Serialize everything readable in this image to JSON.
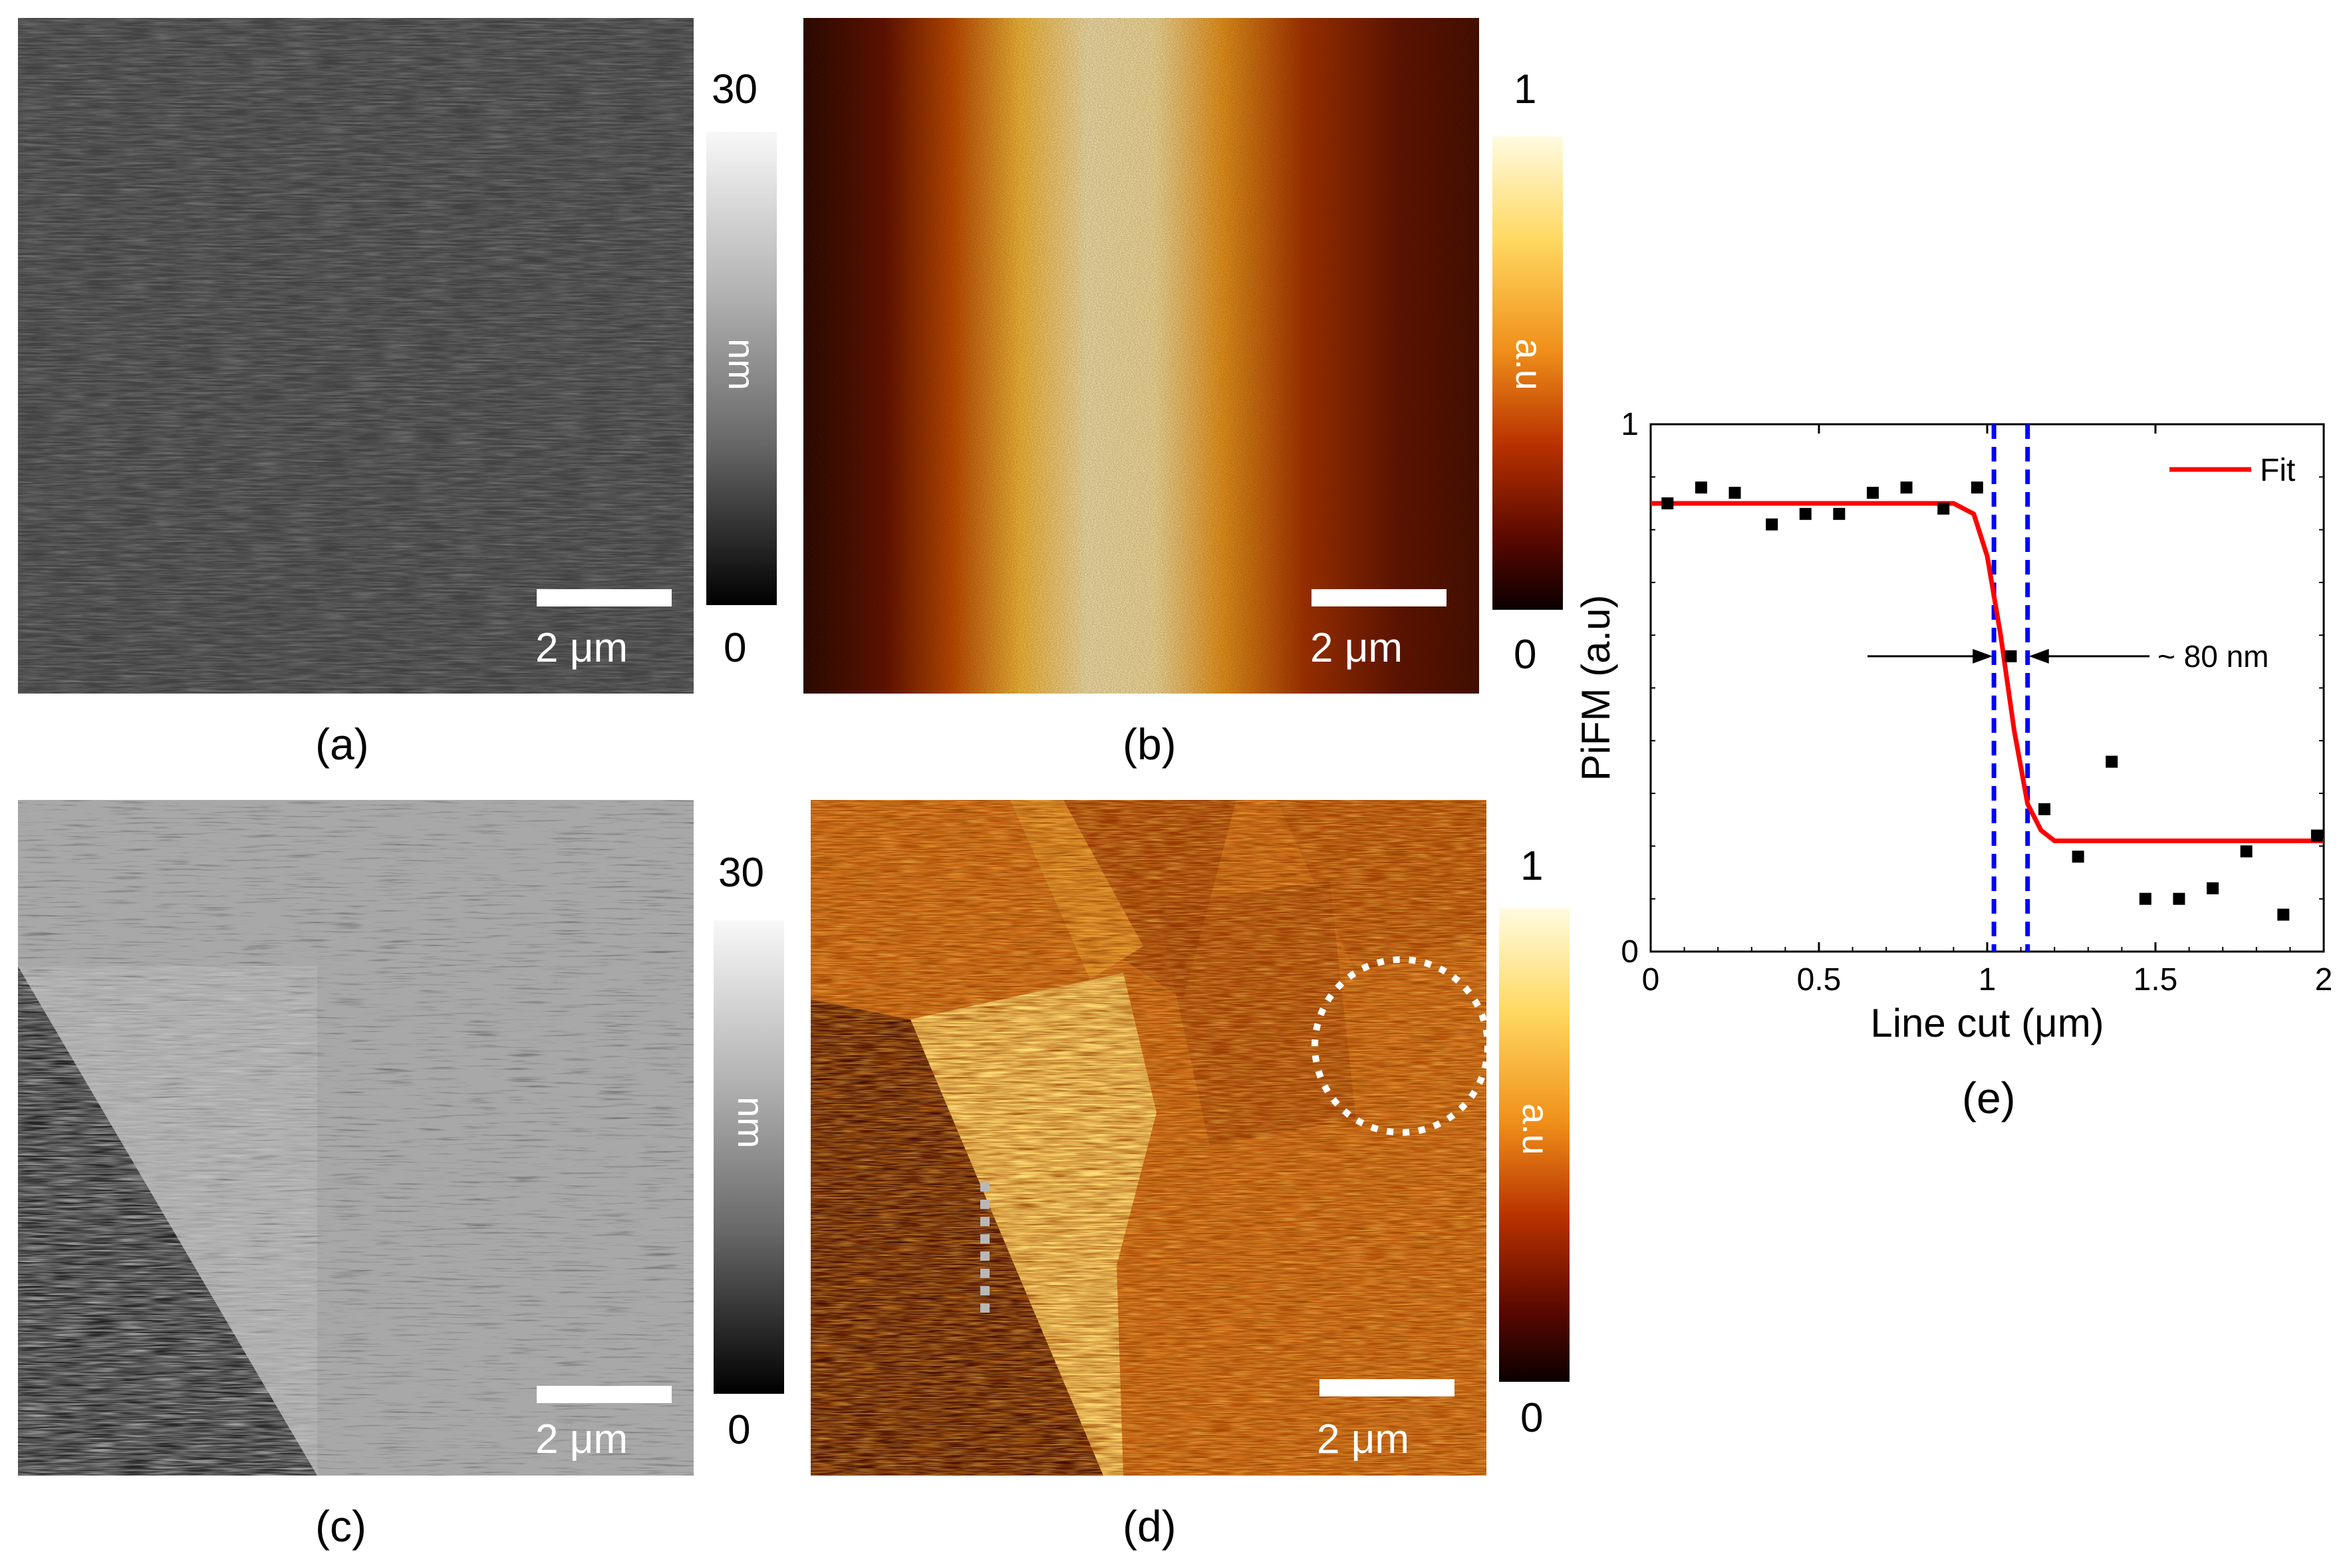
{
  "panels": {
    "a": {
      "label": "(a)",
      "scalebar": "2 μm",
      "colorbar": {
        "max": "30",
        "min": "0",
        "unit": "nm"
      }
    },
    "b": {
      "label": "(b)",
      "scalebar": "2 μm",
      "colorbar": {
        "max": "1",
        "min": "0",
        "unit": "a.u"
      }
    },
    "c": {
      "label": "(c)",
      "scalebar": "2 μm",
      "colorbar": {
        "max": "30",
        "min": "0",
        "unit": "nm"
      }
    },
    "d": {
      "label": "(d)",
      "scalebar": "2 μm",
      "colorbar": {
        "max": "1",
        "min": "0",
        "unit": "a.u"
      }
    },
    "e": {
      "label": "(e)"
    }
  },
  "colors": {
    "fit_line": "#ff0000",
    "dashed_lines": "#0000ff",
    "data_points": "#000000",
    "hot_dark": "#1a0000",
    "hot_bright": "#fff6c8"
  },
  "chart_data": {
    "type": "scatter",
    "xlabel": "Line cut (μm)",
    "ylabel": "PiFM (a.u)",
    "xlim": [
      0,
      2
    ],
    "ylim": [
      0,
      1
    ],
    "xticks": [
      "0",
      "0.5",
      "1",
      "1.5",
      "2"
    ],
    "yticks": [
      "0",
      "1"
    ],
    "legend": {
      "placement": "top-right",
      "entries": [
        "Fit"
      ]
    },
    "annotation": "~ 80 nm",
    "series": [
      {
        "x": [
          0.05,
          0.15,
          0.25,
          0.36,
          0.46,
          0.56,
          0.66,
          0.76,
          0.87,
          0.97,
          1.07,
          1.17,
          1.27,
          1.37,
          1.47,
          1.57,
          1.67,
          1.77,
          1.88,
          1.98
        ],
        "y": [
          0.85,
          0.88,
          0.87,
          0.81,
          0.83,
          0.83,
          0.87,
          0.88,
          0.84,
          0.88,
          0.56,
          0.27,
          0.18,
          0.36,
          0.1,
          0.1,
          0.12,
          0.19,
          0.07,
          0.22
        ]
      }
    ],
    "fit": {
      "x": [
        0,
        0.9,
        0.96,
        1.0,
        1.04,
        1.08,
        1.12,
        1.16,
        1.2,
        2.0
      ],
      "y": [
        0.85,
        0.85,
        0.83,
        0.75,
        0.6,
        0.42,
        0.28,
        0.23,
        0.21,
        0.21
      ]
    },
    "dashed_x": [
      1.02,
      1.12
    ]
  }
}
